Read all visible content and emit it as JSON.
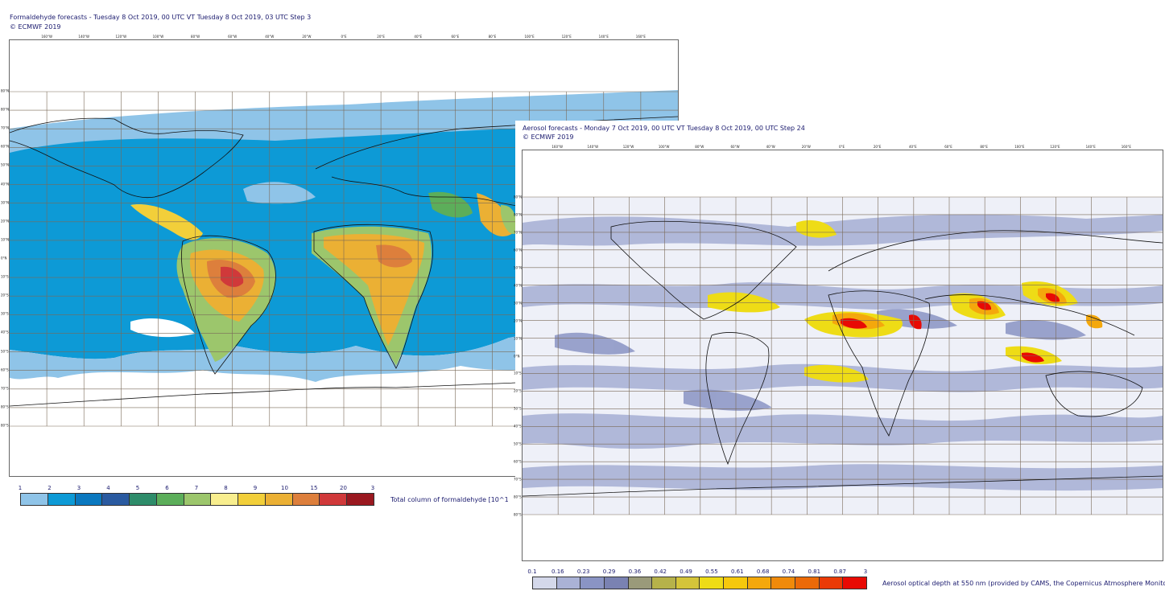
{
  "formaldehyde": {
    "title": "Formaldehyde forecasts - Tuesday 8 Oct 2019, 00 UTC VT Tuesday 8 Oct 2019, 03 UTC Step 3",
    "copyright": "© ECMWF 2019",
    "lon_labels": [
      "160°W",
      "140°W",
      "120°W",
      "100°W",
      "80°W",
      "60°W",
      "40°W",
      "20°W",
      "0°E",
      "20°E",
      "40°E",
      "60°E",
      "80°E",
      "100°E",
      "120°E",
      "140°E",
      "160°E"
    ],
    "lat_labels": [
      "80°N",
      "80°N",
      "70°N",
      "60°N",
      "50°N",
      "40°N",
      "30°N",
      "20°N",
      "10°N",
      "0°N",
      "10°S",
      "20°S",
      "30°S",
      "40°S",
      "50°S",
      "60°S",
      "70°S",
      "80°S",
      "80°S"
    ],
    "legend": {
      "ticks": [
        "1",
        "2",
        "3",
        "4",
        "5",
        "6",
        "7",
        "8",
        "9",
        "10",
        "15",
        "20",
        "3"
      ],
      "colors": [
        "#8fc4e8",
        "#0d9ad6",
        "#0a78bf",
        "#2a5aa0",
        "#2e8c6a",
        "#5cae5a",
        "#9cc66c",
        "#f8ee8e",
        "#f2cf3a",
        "#ebb034",
        "#dd7f3c",
        "#d0393a",
        "#9a1820"
      ],
      "caption": "Total column of formaldehyde [10^1"
    }
  },
  "aerosol": {
    "title": "Aerosol forecasts - Monday 7 Oct 2019, 00 UTC VT Tuesday 8 Oct 2019, 00 UTC Step 24",
    "copyright": "© ECMWF 2019",
    "lon_labels": [
      "160°W",
      "140°W",
      "120°W",
      "100°W",
      "80°W",
      "60°W",
      "40°W",
      "20°W",
      "0°E",
      "20°E",
      "40°E",
      "60°E",
      "80°E",
      "100°E",
      "120°E",
      "140°E",
      "160°E"
    ],
    "lat_labels": [
      "80°N",
      "80°N",
      "70°N",
      "60°N",
      "50°N",
      "40°N",
      "30°N",
      "20°N",
      "10°N",
      "0°N",
      "10°S",
      "20°S",
      "30°S",
      "40°S",
      "50°S",
      "60°S",
      "70°S",
      "80°S",
      "80°S"
    ],
    "legend": {
      "ticks": [
        "0.1",
        "0.16",
        "0.23",
        "0.29",
        "0.36",
        "0.42",
        "0.49",
        "0.55",
        "0.61",
        "0.68",
        "0.74",
        "0.81",
        "0.87",
        "3"
      ],
      "colors": [
        "#d4d8ea",
        "#aab2d6",
        "#8a94c4",
        "#7a82b2",
        "#9a9a7a",
        "#b6b24a",
        "#d4c43a",
        "#eedc16",
        "#f6c80c",
        "#f4a80c",
        "#f08a0a",
        "#ec6a08",
        "#ea3a06",
        "#e80a04"
      ],
      "caption": "Aerosol optical depth at 550 nm (provided by CAMS, the Copernicus Atmosphere Monito"
    }
  }
}
